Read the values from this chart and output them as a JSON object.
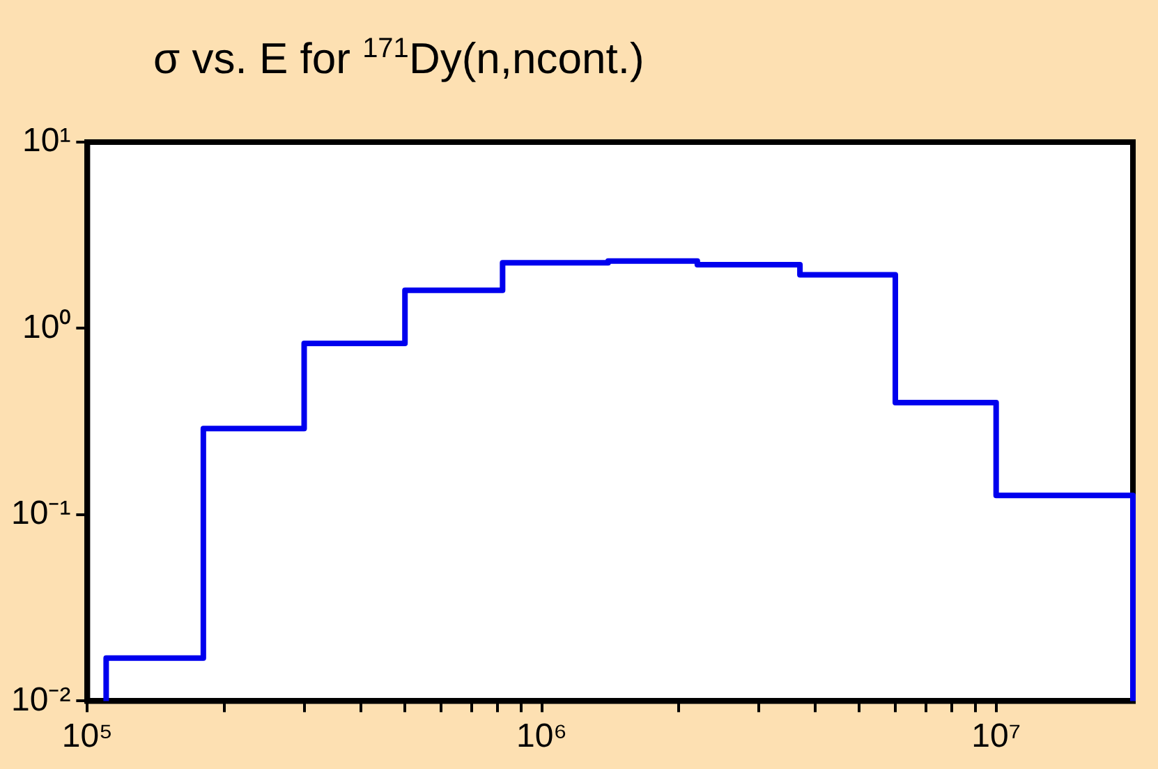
{
  "chart_data": {
    "type": "step",
    "title": "σ vs. E for $^{171}$Dy(n,ncont.)",
    "log": "xy",
    "grid": false,
    "legend": false,
    "marker": "none",
    "line_style": "solid",
    "xlim": [
      100000,
      20000000
    ],
    "ylim": [
      0.01,
      10
    ],
    "xticks": [
      {
        "value": 100000,
        "label": "10⁵"
      },
      {
        "value": 200000,
        "label": null
      },
      {
        "value": 300000,
        "label": null
      },
      {
        "value": 400000,
        "label": null
      },
      {
        "value": 500000,
        "label": null
      },
      {
        "value": 600000,
        "label": null
      },
      {
        "value": 700000,
        "label": null
      },
      {
        "value": 800000,
        "label": null
      },
      {
        "value": 900000,
        "label": null
      },
      {
        "value": 1000000,
        "label": "10⁶"
      },
      {
        "value": 2000000,
        "label": null
      },
      {
        "value": 3000000,
        "label": null
      },
      {
        "value": 4000000,
        "label": null
      },
      {
        "value": 5000000,
        "label": null
      },
      {
        "value": 6000000,
        "label": null
      },
      {
        "value": 7000000,
        "label": null
      },
      {
        "value": 8000000,
        "label": null
      },
      {
        "value": 9000000,
        "label": null
      },
      {
        "value": 10000000,
        "label": "10⁷"
      }
    ],
    "yticks": [
      {
        "value": 0.01,
        "label": "10⁻²"
      },
      {
        "value": 0.1,
        "label": "10⁻¹"
      },
      {
        "value": 1,
        "label": "10⁰"
      },
      {
        "value": 10,
        "label": "10¹"
      }
    ],
    "series": [
      {
        "color": "#0000ee",
        "x": [
          110000,
          110000,
          180000,
          300000,
          500000,
          820000,
          1400000,
          2200000,
          3700000,
          6000000,
          10000000,
          20000000,
          20000000
        ],
        "values": [
          0.01,
          0.017,
          0.29,
          0.83,
          1.6,
          2.25,
          2.3,
          2.2,
          1.94,
          0.4,
          0.127,
          0.127,
          0.01
        ]
      }
    ]
  }
}
